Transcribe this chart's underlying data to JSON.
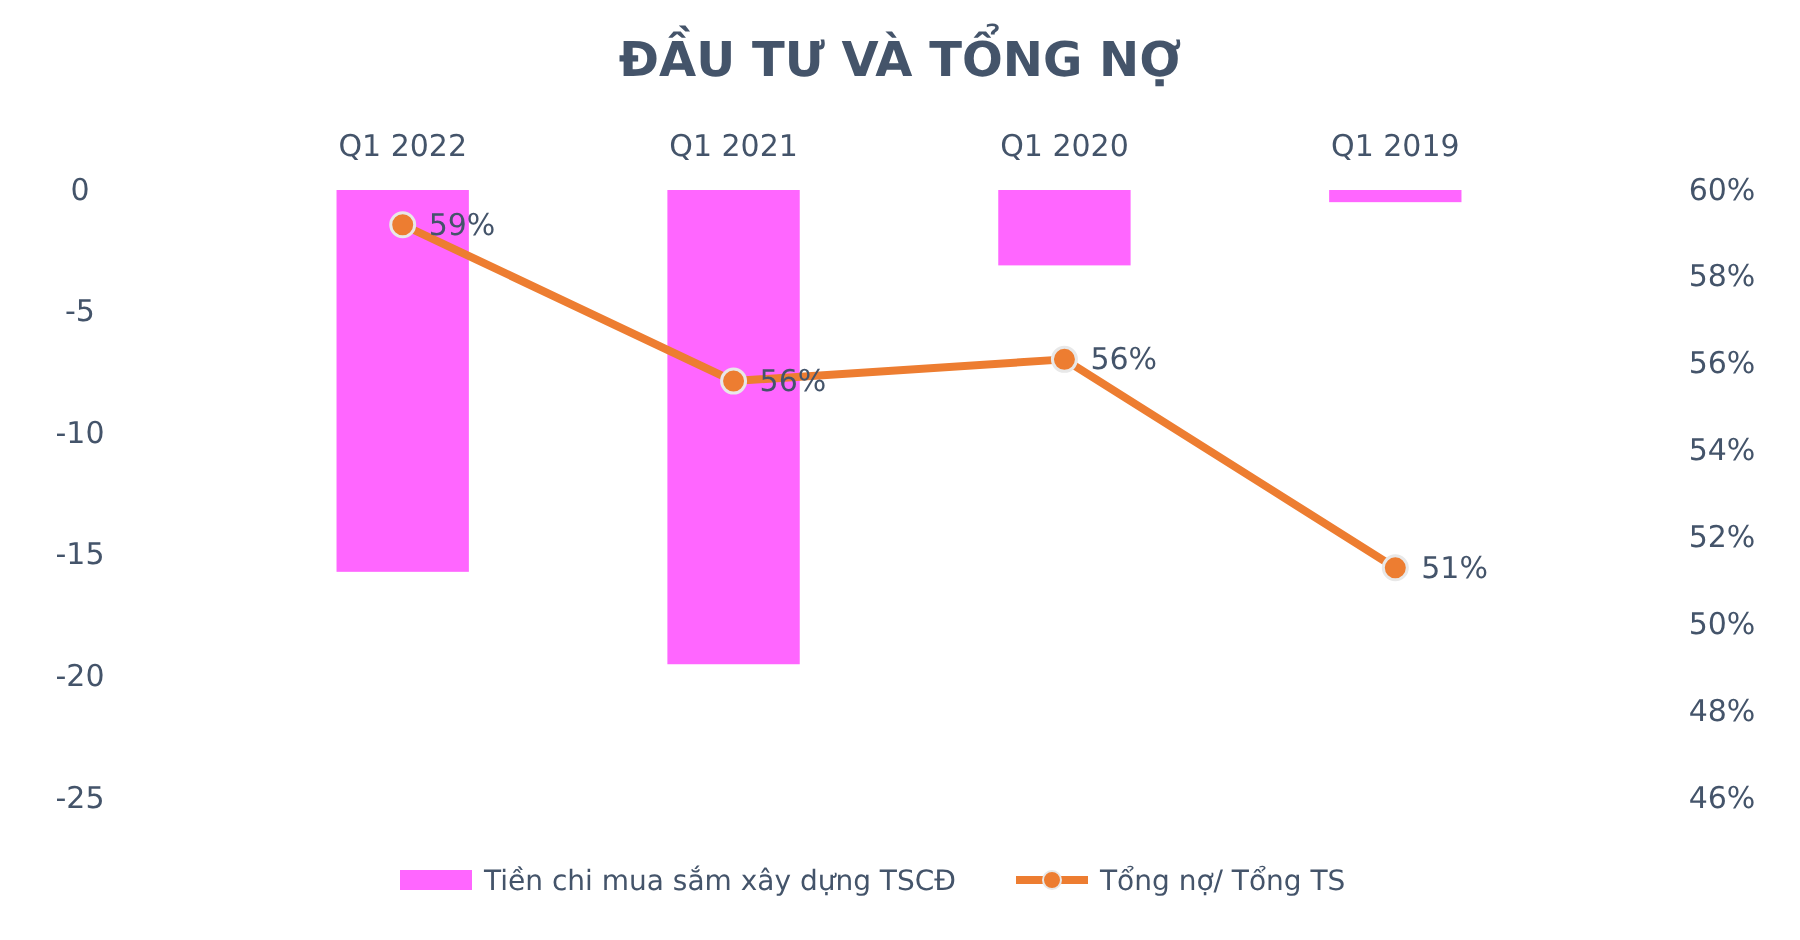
{
  "chart_data": {
    "type": "bar",
    "title": "ĐẦU TƯ VÀ TỔNG NỢ",
    "categories": [
      "Q1 2022",
      "Q1 2021",
      "Q1 2020",
      "Q1 2019"
    ],
    "series": [
      {
        "name": "Tiền chi mua sắm xây dựng TSCĐ",
        "color": "#ff66ff",
        "values": [
          -15.7,
          -19.5,
          -3.1,
          -0.5
        ]
      },
      {
        "name": "Tổng nợ/ Tổng TS",
        "type": "line",
        "axis": "y2",
        "color": "#ed7d31",
        "marker": "circle",
        "values": [
          59.2,
          55.6,
          56.1,
          51.3
        ],
        "value_labels": [
          "59%",
          "56%",
          "56%",
          "51%"
        ]
      }
    ],
    "ylim": [
      -25,
      0
    ],
    "yticks": [
      -25,
      -20,
      -15,
      -10,
      -5,
      0
    ],
    "y2lim": [
      46,
      60
    ],
    "y2ticks": [
      {
        "value": 46,
        "label": "46%"
      },
      {
        "value": 48,
        "label": "48%"
      },
      {
        "value": 50,
        "label": "50%"
      },
      {
        "value": 52,
        "label": "52%"
      },
      {
        "value": 54,
        "label": "54%"
      },
      {
        "value": 56,
        "label": "56%"
      },
      {
        "value": 58,
        "label": "58%"
      },
      {
        "value": 60,
        "label": "60%"
      }
    ],
    "grid": false,
    "legend": "bottom"
  }
}
